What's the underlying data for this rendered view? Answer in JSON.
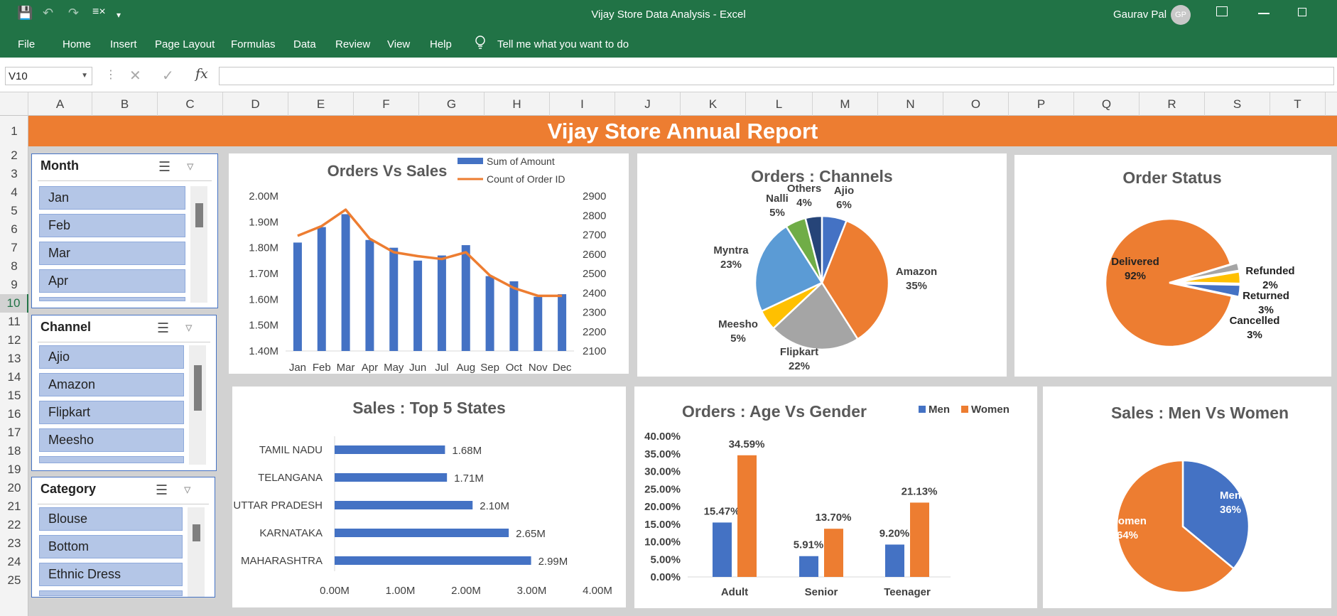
{
  "window": {
    "title": "Vijay Store Data Analysis  -  Excel",
    "user": "Gaurav Pal",
    "avatar": "GP"
  },
  "ribbon": {
    "tabs": [
      "File",
      "Home",
      "Insert",
      "Page Layout",
      "Formulas",
      "Data",
      "Review",
      "View",
      "Help"
    ],
    "tell_me": "Tell me what you want to do"
  },
  "formula_bar": {
    "name_box": "V10",
    "fx": "fx",
    "value": ""
  },
  "columns": [
    "A",
    "B",
    "C",
    "D",
    "E",
    "F",
    "G",
    "H",
    "I",
    "J",
    "K",
    "L",
    "M",
    "N",
    "O",
    "P",
    "Q",
    "R",
    "S",
    "T"
  ],
  "rows": [
    "1",
    "2",
    "3",
    "4",
    "5",
    "6",
    "7",
    "8",
    "9",
    "10",
    "11",
    "12",
    "13",
    "14",
    "15",
    "16",
    "17",
    "18",
    "19",
    "20",
    "21",
    "22",
    "23",
    "24",
    "25"
  ],
  "active_cell": {
    "column": "V",
    "row": "10"
  },
  "report_title": "Vijay Store Annual Report",
  "slicers": [
    {
      "title": "Month",
      "items": [
        "Jan",
        "Feb",
        "Mar",
        "Apr"
      ]
    },
    {
      "title": "Channel",
      "items": [
        "Ajio",
        "Amazon",
        "Flipkart",
        "Meesho"
      ]
    },
    {
      "title": "Category",
      "items": [
        "Blouse",
        "Bottom",
        "Ethnic Dress"
      ]
    }
  ],
  "colors": {
    "excel_green": "#217346",
    "orange": "#ed7d31",
    "blue": "#4472c4",
    "grey": "#a5a5a5",
    "yellow": "#ffc000",
    "light_blue": "#5b9bd5",
    "green": "#70ad47",
    "navy": "#264478"
  },
  "chart_data": [
    {
      "type": "bar+line",
      "title": "Orders Vs Sales",
      "categories": [
        "Jan",
        "Feb",
        "Mar",
        "Apr",
        "May",
        "Jun",
        "Jul",
        "Aug",
        "Sep",
        "Oct",
        "Nov",
        "Dec"
      ],
      "series": [
        {
          "name": "Sum of Amount",
          "type": "bar",
          "axis": "left",
          "values": [
            1.82,
            1.88,
            1.93,
            1.83,
            1.8,
            1.75,
            1.77,
            1.81,
            1.69,
            1.67,
            1.61,
            1.62
          ]
        },
        {
          "name": "Count of Order ID",
          "type": "line",
          "axis": "right",
          "values": [
            2695,
            2745,
            2830,
            2680,
            2610,
            2590,
            2575,
            2610,
            2490,
            2425,
            2385,
            2385
          ]
        }
      ],
      "y_left": {
        "ticks": [
          "1.40M",
          "1.50M",
          "1.60M",
          "1.70M",
          "1.80M",
          "1.90M",
          "2.00M"
        ],
        "lim": [
          1.4,
          2.0
        ]
      },
      "y_right": {
        "ticks": [
          "2100",
          "2200",
          "2300",
          "2400",
          "2500",
          "2600",
          "2700",
          "2800",
          "2900"
        ],
        "lim": [
          2100,
          2900
        ]
      },
      "legend": "top-right"
    },
    {
      "type": "pie",
      "title": "Orders : Channels",
      "slices": [
        {
          "label": "Ajio",
          "value": 6
        },
        {
          "label": "Amazon",
          "value": 35
        },
        {
          "label": "Flipkart",
          "value": 22
        },
        {
          "label": "Meesho",
          "value": 5
        },
        {
          "label": "Myntra",
          "value": 23
        },
        {
          "label": "Nalli",
          "value": 5
        },
        {
          "label": "Others",
          "value": 4
        }
      ],
      "display": [
        "6%",
        "35%",
        "22%",
        "5%",
        "23%",
        "5%",
        "4%"
      ]
    },
    {
      "type": "pie",
      "title": "Order Status",
      "slices": [
        {
          "label": "Delivered",
          "value": 92
        },
        {
          "label": "Refunded",
          "value": 2
        },
        {
          "label": "Returned",
          "value": 3
        },
        {
          "label": "Cancelled",
          "value": 3
        }
      ],
      "display": [
        "92%",
        "2%",
        "3%",
        "3%"
      ]
    },
    {
      "type": "bar",
      "orientation": "horizontal",
      "title": "Sales : Top 5 States",
      "categories": [
        "TAMIL NADU",
        "TELANGANA",
        "UTTAR PRADESH",
        "KARNATAKA",
        "MAHARASHTRA"
      ],
      "values": [
        1.68,
        1.71,
        2.1,
        2.65,
        2.99
      ],
      "labels": [
        "1.68M",
        "1.71M",
        "2.10M",
        "2.65M",
        "2.99M"
      ],
      "x_ticks": [
        "0.00M",
        "1.00M",
        "2.00M",
        "3.00M",
        "4.00M"
      ],
      "xlim": [
        0,
        4
      ]
    },
    {
      "type": "bar",
      "title": "Orders : Age Vs Gender",
      "categories": [
        "Adult",
        "Senior",
        "Teenager"
      ],
      "series": [
        {
          "name": "Men",
          "values": [
            15.47,
            5.91,
            9.2
          ]
        },
        {
          "name": "Women",
          "values": [
            34.59,
            13.7,
            21.13
          ]
        }
      ],
      "labels": [
        [
          "15.47%",
          "5.91%",
          "9.20%"
        ],
        [
          "34.59%",
          "13.70%",
          "21.13%"
        ]
      ],
      "y_ticks": [
        "0.00%",
        "5.00%",
        "10.00%",
        "15.00%",
        "20.00%",
        "25.00%",
        "30.00%",
        "35.00%",
        "40.00%"
      ],
      "ylim": [
        0,
        40
      ],
      "legend": "top-right"
    },
    {
      "type": "pie",
      "title": "Sales : Men Vs Women",
      "slices": [
        {
          "label": "Men",
          "value": 36
        },
        {
          "label": "Women",
          "value": 64
        }
      ],
      "display": [
        "36%",
        "64%"
      ]
    }
  ]
}
